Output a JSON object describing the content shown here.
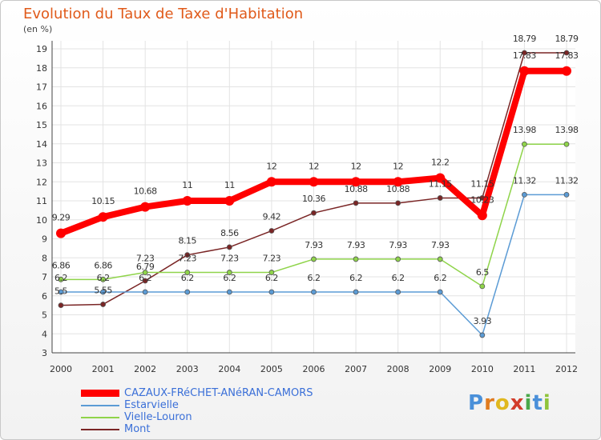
{
  "chart_data": {
    "type": "line",
    "title": "Evolution du Taux de Taxe d'Habitation",
    "subtitle": "(en %)",
    "x": [
      "2000",
      "2001",
      "2002",
      "2003",
      "2004",
      "2005",
      "2006",
      "2007",
      "2008",
      "2009",
      "2010",
      "2011",
      "2012"
    ],
    "ylim": [
      3,
      19
    ],
    "yticks": [
      3,
      4,
      5,
      6,
      7,
      8,
      9,
      10,
      11,
      12,
      13,
      14,
      15,
      16,
      17,
      18,
      19
    ],
    "grid": true,
    "legend_position": "bottom-left",
    "series": [
      {
        "name": "CAZAUX-FRéCHET-ANéRAN-CAMORS",
        "color": "#ff0000",
        "values": [
          9.29,
          10.15,
          10.68,
          11,
          11,
          12,
          12,
          12,
          12,
          12.2,
          10.23,
          17.83,
          17.83
        ],
        "labels": [
          "9.29",
          "10.15",
          "10.68",
          "11",
          "11",
          "12",
          "12",
          "12",
          "12",
          "12.2",
          "10.23",
          "17.83",
          "17.83"
        ]
      },
      {
        "name": "Estarvielle",
        "color": "#5b9bd5",
        "values": [
          6.2,
          6.2,
          6.2,
          6.2,
          6.2,
          6.2,
          6.2,
          6.2,
          6.2,
          6.2,
          3.93,
          11.32,
          11.32
        ],
        "labels": [
          "6.2",
          "6.2",
          "6.2",
          "6.2",
          "6.2",
          "6.2",
          "6.2",
          "6.2",
          "6.2",
          "6.2",
          "3.93",
          "11.32",
          "11.32"
        ]
      },
      {
        "name": "Vielle-Louron",
        "color": "#8fd44a",
        "values": [
          6.86,
          6.86,
          7.23,
          7.23,
          7.23,
          7.23,
          7.93,
          7.93,
          7.93,
          7.93,
          6.5,
          13.98,
          13.98
        ],
        "labels": [
          "6.86",
          "6.86",
          "7.23",
          "7.23",
          "7.23",
          "7.23",
          "7.93",
          "7.93",
          "7.93",
          "7.93",
          "6.5",
          "13.98",
          "13.98"
        ]
      },
      {
        "name": "Mont",
        "color": "#7a2525",
        "values": [
          5.5,
          5.55,
          6.79,
          8.15,
          8.56,
          9.42,
          10.36,
          10.88,
          10.88,
          11.15,
          11.15,
          18.79,
          18.79
        ],
        "labels": [
          "5.5",
          "5.55",
          "6.79",
          "8.15",
          "8.56",
          "9.42",
          "10.36",
          "10.88",
          "10.88",
          "11.15",
          "11.15",
          "18.79",
          "18.79"
        ]
      }
    ]
  },
  "brand": {
    "letters": [
      "P",
      "r",
      "o",
      "x",
      "i",
      "t",
      "i"
    ],
    "colors": [
      "#4a90d9",
      "#e07b1f",
      "#e0b81f",
      "#d23c2a",
      "#4aa84a",
      "#4a90d9",
      "#8fc43a"
    ]
  }
}
